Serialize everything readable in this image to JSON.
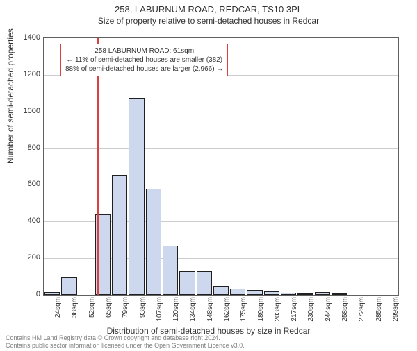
{
  "title_main": "258, LABURNUM ROAD, REDCAR, TS10 3PL",
  "title_sub": "Size of property relative to semi-detached houses in Redcar",
  "ylabel": "Number of semi-detached properties",
  "xlabel": "Distribution of semi-detached houses by size in Redcar",
  "footer_line1": "Contains HM Land Registry data © Crown copyright and database right 2024.",
  "footer_line2": "Contains public sector information licensed under the Open Government Licence v3.0.",
  "annotation": {
    "line1": "258 LABURNUM ROAD: 61sqm",
    "line2": "← 11% of semi-detached houses are smaller (382)",
    "line3": "88% of semi-detached houses are larger (2,966) →"
  },
  "chart": {
    "type": "histogram",
    "background_color": "#ffffff",
    "grid_color": "#cccccc",
    "axis_color": "#606060",
    "bar_fill": "#cdd8ee",
    "bar_border": "#202020",
    "ref_line_color": "#d94040",
    "ylim": [
      0,
      1400
    ],
    "ytick_step": 200,
    "yticks": [
      0,
      200,
      400,
      600,
      800,
      1000,
      1200,
      1400
    ],
    "ref_value": 61,
    "x_categories": [
      "24sqm",
      "38sqm",
      "52sqm",
      "65sqm",
      "79sqm",
      "93sqm",
      "107sqm",
      "120sqm",
      "134sqm",
      "148sqm",
      "162sqm",
      "175sqm",
      "189sqm",
      "203sqm",
      "217sqm",
      "230sqm",
      "244sqm",
      "258sqm",
      "272sqm",
      "285sqm",
      "299sqm"
    ],
    "values": [
      15,
      95,
      0,
      440,
      655,
      1075,
      580,
      270,
      130,
      130,
      45,
      35,
      25,
      20,
      10,
      5,
      15,
      5,
      0,
      0,
      0
    ],
    "title_fontsize": 13,
    "label_fontsize": 12,
    "tick_fontsize": 10
  }
}
